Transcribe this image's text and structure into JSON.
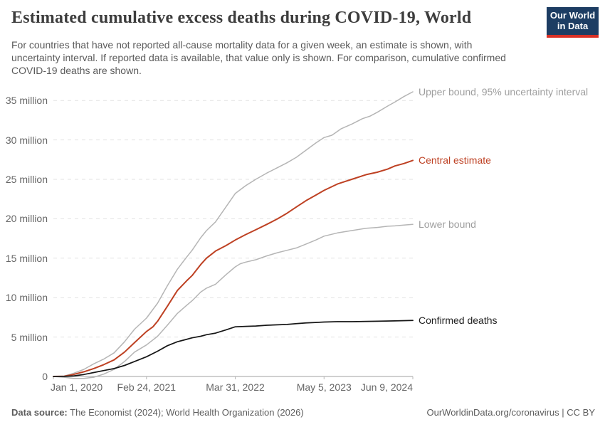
{
  "header": {
    "title": "Estimated cumulative excess deaths during COVID-19, World",
    "subtitle": "For countries that have not reported all-cause mortality data for a given week, an estimate is shown, with uncertainty interval. If reported data is available, that value only is shown. For comparison, cumulative confirmed COVID-19 deaths are shown.",
    "logo": {
      "line1": "Our World",
      "line2": "in Data",
      "bg_color": "#1d3d63",
      "accent_color": "#d93025"
    }
  },
  "chart_data": {
    "type": "line",
    "title": "Estimated cumulative excess deaths during COVID-19, World",
    "xlabel": "",
    "ylabel": "",
    "unit": "million deaths",
    "grid": "dashed horizontal",
    "legend_position": "right-of-line-end-labels",
    "x_axis": {
      "range": [
        "Jan 1, 2020",
        "Jun 9, 2024"
      ],
      "note": "t is the fraction of the way from Jan 1, 2020 to Jun 9, 2024",
      "ticks": [
        {
          "label": "Jan 1, 2020",
          "t": 0
        },
        {
          "label": "Feb 24, 2021",
          "t": 0.259
        },
        {
          "label": "Mar 31, 2022",
          "t": 0.506
        },
        {
          "label": "May 5, 2023",
          "t": 0.753
        },
        {
          "label": "Jun 9, 2024",
          "t": 1
        }
      ]
    },
    "y_axis": {
      "range": [
        0,
        37
      ],
      "ticks": [
        {
          "label": "0",
          "value": 0
        },
        {
          "label": "5 million",
          "value": 5
        },
        {
          "label": "10 million",
          "value": 10
        },
        {
          "label": "15 million",
          "value": 15
        },
        {
          "label": "20 million",
          "value": 20
        },
        {
          "label": "25 million",
          "value": 25
        },
        {
          "label": "30 million",
          "value": 30
        },
        {
          "label": "35 million",
          "value": 35
        }
      ]
    },
    "series": [
      {
        "name": "Upper bound, 95% uncertainty interval",
        "color": "#b5b5b5",
        "label_color": "#9e9e9e",
        "width": 1.5,
        "points": [
          [
            0,
            0
          ],
          [
            0.03,
            0.05
          ],
          [
            0.056,
            0.4
          ],
          [
            0.085,
            0.9
          ],
          [
            0.112,
            1.6
          ],
          [
            0.14,
            2.2
          ],
          [
            0.169,
            3.0
          ],
          [
            0.198,
            4.4
          ],
          [
            0.226,
            6.0
          ],
          [
            0.259,
            7.4
          ],
          [
            0.29,
            9.3
          ],
          [
            0.317,
            11.5
          ],
          [
            0.345,
            13.6
          ],
          [
            0.37,
            15.1
          ],
          [
            0.386,
            16.0
          ],
          [
            0.41,
            17.6
          ],
          [
            0.426,
            18.5
          ],
          [
            0.451,
            19.6
          ],
          [
            0.48,
            21.5
          ],
          [
            0.506,
            23.2
          ],
          [
            0.535,
            24.2
          ],
          [
            0.563,
            25.0
          ],
          [
            0.594,
            25.8
          ],
          [
            0.624,
            26.5
          ],
          [
            0.65,
            27.1
          ],
          [
            0.676,
            27.8
          ],
          [
            0.703,
            28.7
          ],
          [
            0.73,
            29.6
          ],
          [
            0.753,
            30.3
          ],
          [
            0.775,
            30.6
          ],
          [
            0.8,
            31.4
          ],
          [
            0.83,
            32.0
          ],
          [
            0.86,
            32.7
          ],
          [
            0.88,
            33.0
          ],
          [
            0.901,
            33.5
          ],
          [
            0.93,
            34.3
          ],
          [
            0.95,
            34.8
          ],
          [
            0.975,
            35.5
          ],
          [
            1,
            36.1
          ]
        ]
      },
      {
        "name": "Central estimate",
        "color": "#be4123",
        "label_color": "#be4123",
        "width": 2,
        "points": [
          [
            0,
            0
          ],
          [
            0.03,
            0.03
          ],
          [
            0.056,
            0.25
          ],
          [
            0.085,
            0.6
          ],
          [
            0.112,
            1.0
          ],
          [
            0.14,
            1.5
          ],
          [
            0.169,
            2.1
          ],
          [
            0.198,
            3.1
          ],
          [
            0.226,
            4.3
          ],
          [
            0.259,
            5.7
          ],
          [
            0.277,
            6.3
          ],
          [
            0.29,
            7.0
          ],
          [
            0.317,
            8.9
          ],
          [
            0.345,
            10.9
          ],
          [
            0.37,
            12.1
          ],
          [
            0.386,
            12.8
          ],
          [
            0.41,
            14.2
          ],
          [
            0.426,
            15.0
          ],
          [
            0.451,
            15.9
          ],
          [
            0.48,
            16.6
          ],
          [
            0.506,
            17.3
          ],
          [
            0.535,
            18.0
          ],
          [
            0.563,
            18.6
          ],
          [
            0.594,
            19.3
          ],
          [
            0.624,
            20.0
          ],
          [
            0.65,
            20.7
          ],
          [
            0.676,
            21.5
          ],
          [
            0.703,
            22.3
          ],
          [
            0.73,
            23.0
          ],
          [
            0.753,
            23.6
          ],
          [
            0.79,
            24.4
          ],
          [
            0.83,
            25.0
          ],
          [
            0.87,
            25.6
          ],
          [
            0.901,
            25.9
          ],
          [
            0.93,
            26.3
          ],
          [
            0.95,
            26.7
          ],
          [
            0.975,
            27.0
          ],
          [
            1,
            27.4
          ]
        ]
      },
      {
        "name": "Lower bound",
        "color": "#b5b5b5",
        "label_color": "#9e9e9e",
        "width": 1.5,
        "points": [
          [
            0,
            0
          ],
          [
            0.03,
            -0.1
          ],
          [
            0.056,
            -0.25
          ],
          [
            0.085,
            -0.25
          ],
          [
            0.112,
            -0.1
          ],
          [
            0.14,
            0.3
          ],
          [
            0.169,
            0.9
          ],
          [
            0.198,
            1.9
          ],
          [
            0.226,
            3.1
          ],
          [
            0.259,
            4.0
          ],
          [
            0.29,
            5.1
          ],
          [
            0.317,
            6.5
          ],
          [
            0.345,
            8.0
          ],
          [
            0.37,
            9.0
          ],
          [
            0.386,
            9.6
          ],
          [
            0.41,
            10.7
          ],
          [
            0.426,
            11.2
          ],
          [
            0.451,
            11.7
          ],
          [
            0.48,
            12.9
          ],
          [
            0.506,
            13.9
          ],
          [
            0.52,
            14.3
          ],
          [
            0.535,
            14.5
          ],
          [
            0.563,
            14.8
          ],
          [
            0.594,
            15.3
          ],
          [
            0.624,
            15.7
          ],
          [
            0.65,
            16.0
          ],
          [
            0.676,
            16.3
          ],
          [
            0.703,
            16.8
          ],
          [
            0.73,
            17.3
          ],
          [
            0.753,
            17.8
          ],
          [
            0.79,
            18.2
          ],
          [
            0.83,
            18.5
          ],
          [
            0.87,
            18.8
          ],
          [
            0.901,
            18.9
          ],
          [
            0.93,
            19.05
          ],
          [
            0.95,
            19.1
          ],
          [
            0.975,
            19.2
          ],
          [
            1,
            19.3
          ]
        ]
      },
      {
        "name": "Confirmed deaths",
        "color": "#161616",
        "label_color": "#1d1d1d",
        "width": 1.75,
        "points": [
          [
            0,
            0
          ],
          [
            0.03,
            0.01
          ],
          [
            0.056,
            0.06
          ],
          [
            0.085,
            0.25
          ],
          [
            0.112,
            0.5
          ],
          [
            0.14,
            0.75
          ],
          [
            0.169,
            1.0
          ],
          [
            0.198,
            1.4
          ],
          [
            0.226,
            1.9
          ],
          [
            0.259,
            2.5
          ],
          [
            0.29,
            3.2
          ],
          [
            0.317,
            3.9
          ],
          [
            0.345,
            4.4
          ],
          [
            0.37,
            4.7
          ],
          [
            0.386,
            4.9
          ],
          [
            0.41,
            5.1
          ],
          [
            0.426,
            5.3
          ],
          [
            0.451,
            5.5
          ],
          [
            0.48,
            5.9
          ],
          [
            0.506,
            6.3
          ],
          [
            0.535,
            6.35
          ],
          [
            0.563,
            6.4
          ],
          [
            0.594,
            6.5
          ],
          [
            0.624,
            6.55
          ],
          [
            0.65,
            6.6
          ],
          [
            0.676,
            6.7
          ],
          [
            0.703,
            6.8
          ],
          [
            0.73,
            6.85
          ],
          [
            0.753,
            6.9
          ],
          [
            0.79,
            6.95
          ],
          [
            0.83,
            6.95
          ],
          [
            0.901,
            7.0
          ],
          [
            0.95,
            7.05
          ],
          [
            1,
            7.1
          ]
        ]
      }
    ],
    "colors": {
      "gridline": "#e2e2e2",
      "axis": "#b5b5b5",
      "tick_label": "#666666"
    }
  },
  "footer": {
    "datasource_label": "Data source:",
    "datasource_text": " The Economist (2024); World Health Organization (2026)",
    "link": "OurWorldinData.org/coronavirus | CC BY"
  }
}
